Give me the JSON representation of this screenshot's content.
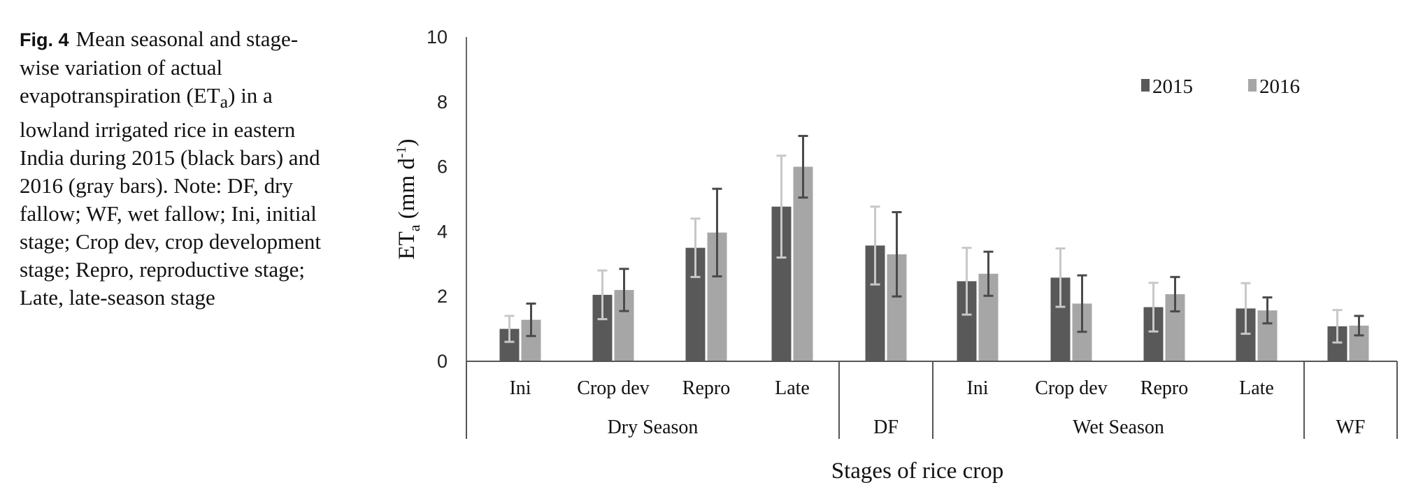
{
  "caption": {
    "label": "Fig. 4",
    "pre": "Mean seasonal and stage-wise variation of actual evapotranspiration (ET",
    "sub": "a",
    "post": ") in a lowland irrigated rice in eastern India during 2015 (black bars) and 2016 (gray bars). Note: DF, dry fallow; WF, wet fallow; Ini, initial stage; Crop dev, crop development stage; Repro, reproductive stage; Late, late-season stage"
  },
  "chart_data": {
    "type": "bar",
    "ylabel": {
      "main": "ET",
      "sub": "a",
      "units": " (mm d",
      "sup": "-1",
      "close": ")"
    },
    "xlabel": "Stages of rice crop",
    "ylim": [
      0,
      10
    ],
    "yticks": [
      "0",
      "2",
      "4",
      "6",
      "8",
      "10"
    ],
    "categories": [
      "Ini",
      "Crop dev",
      "Repro",
      "Late",
      "",
      "Ini",
      "Crop dev",
      "Repro",
      "Late",
      ""
    ],
    "groups": [
      {
        "label": "Dry Season",
        "from": 0,
        "to": 3
      },
      {
        "label": "DF",
        "from": 4,
        "to": 4
      },
      {
        "label": "Wet Season",
        "from": 5,
        "to": 8
      },
      {
        "label": "WF",
        "from": 9,
        "to": 9
      }
    ],
    "series": [
      {
        "name": "2015",
        "color": "#595959",
        "errcolor": "#c8c8c8",
        "values": [
          1.0,
          2.05,
          3.5,
          4.77,
          3.57,
          2.47,
          2.58,
          1.67,
          1.63,
          1.08
        ],
        "errors": [
          0.4,
          0.75,
          0.9,
          1.57,
          1.2,
          1.03,
          0.9,
          0.75,
          0.78,
          0.5
        ]
      },
      {
        "name": "2016",
        "color": "#a6a6a6",
        "errcolor": "#4a4a4a",
        "values": [
          1.28,
          2.2,
          3.97,
          6.0,
          3.3,
          2.7,
          1.78,
          2.07,
          1.57,
          1.1
        ],
        "errors": [
          0.5,
          0.65,
          1.35,
          0.95,
          1.3,
          0.68,
          0.87,
          0.53,
          0.4,
          0.3
        ]
      }
    ],
    "legend_position": "top-right",
    "grid": false
  }
}
